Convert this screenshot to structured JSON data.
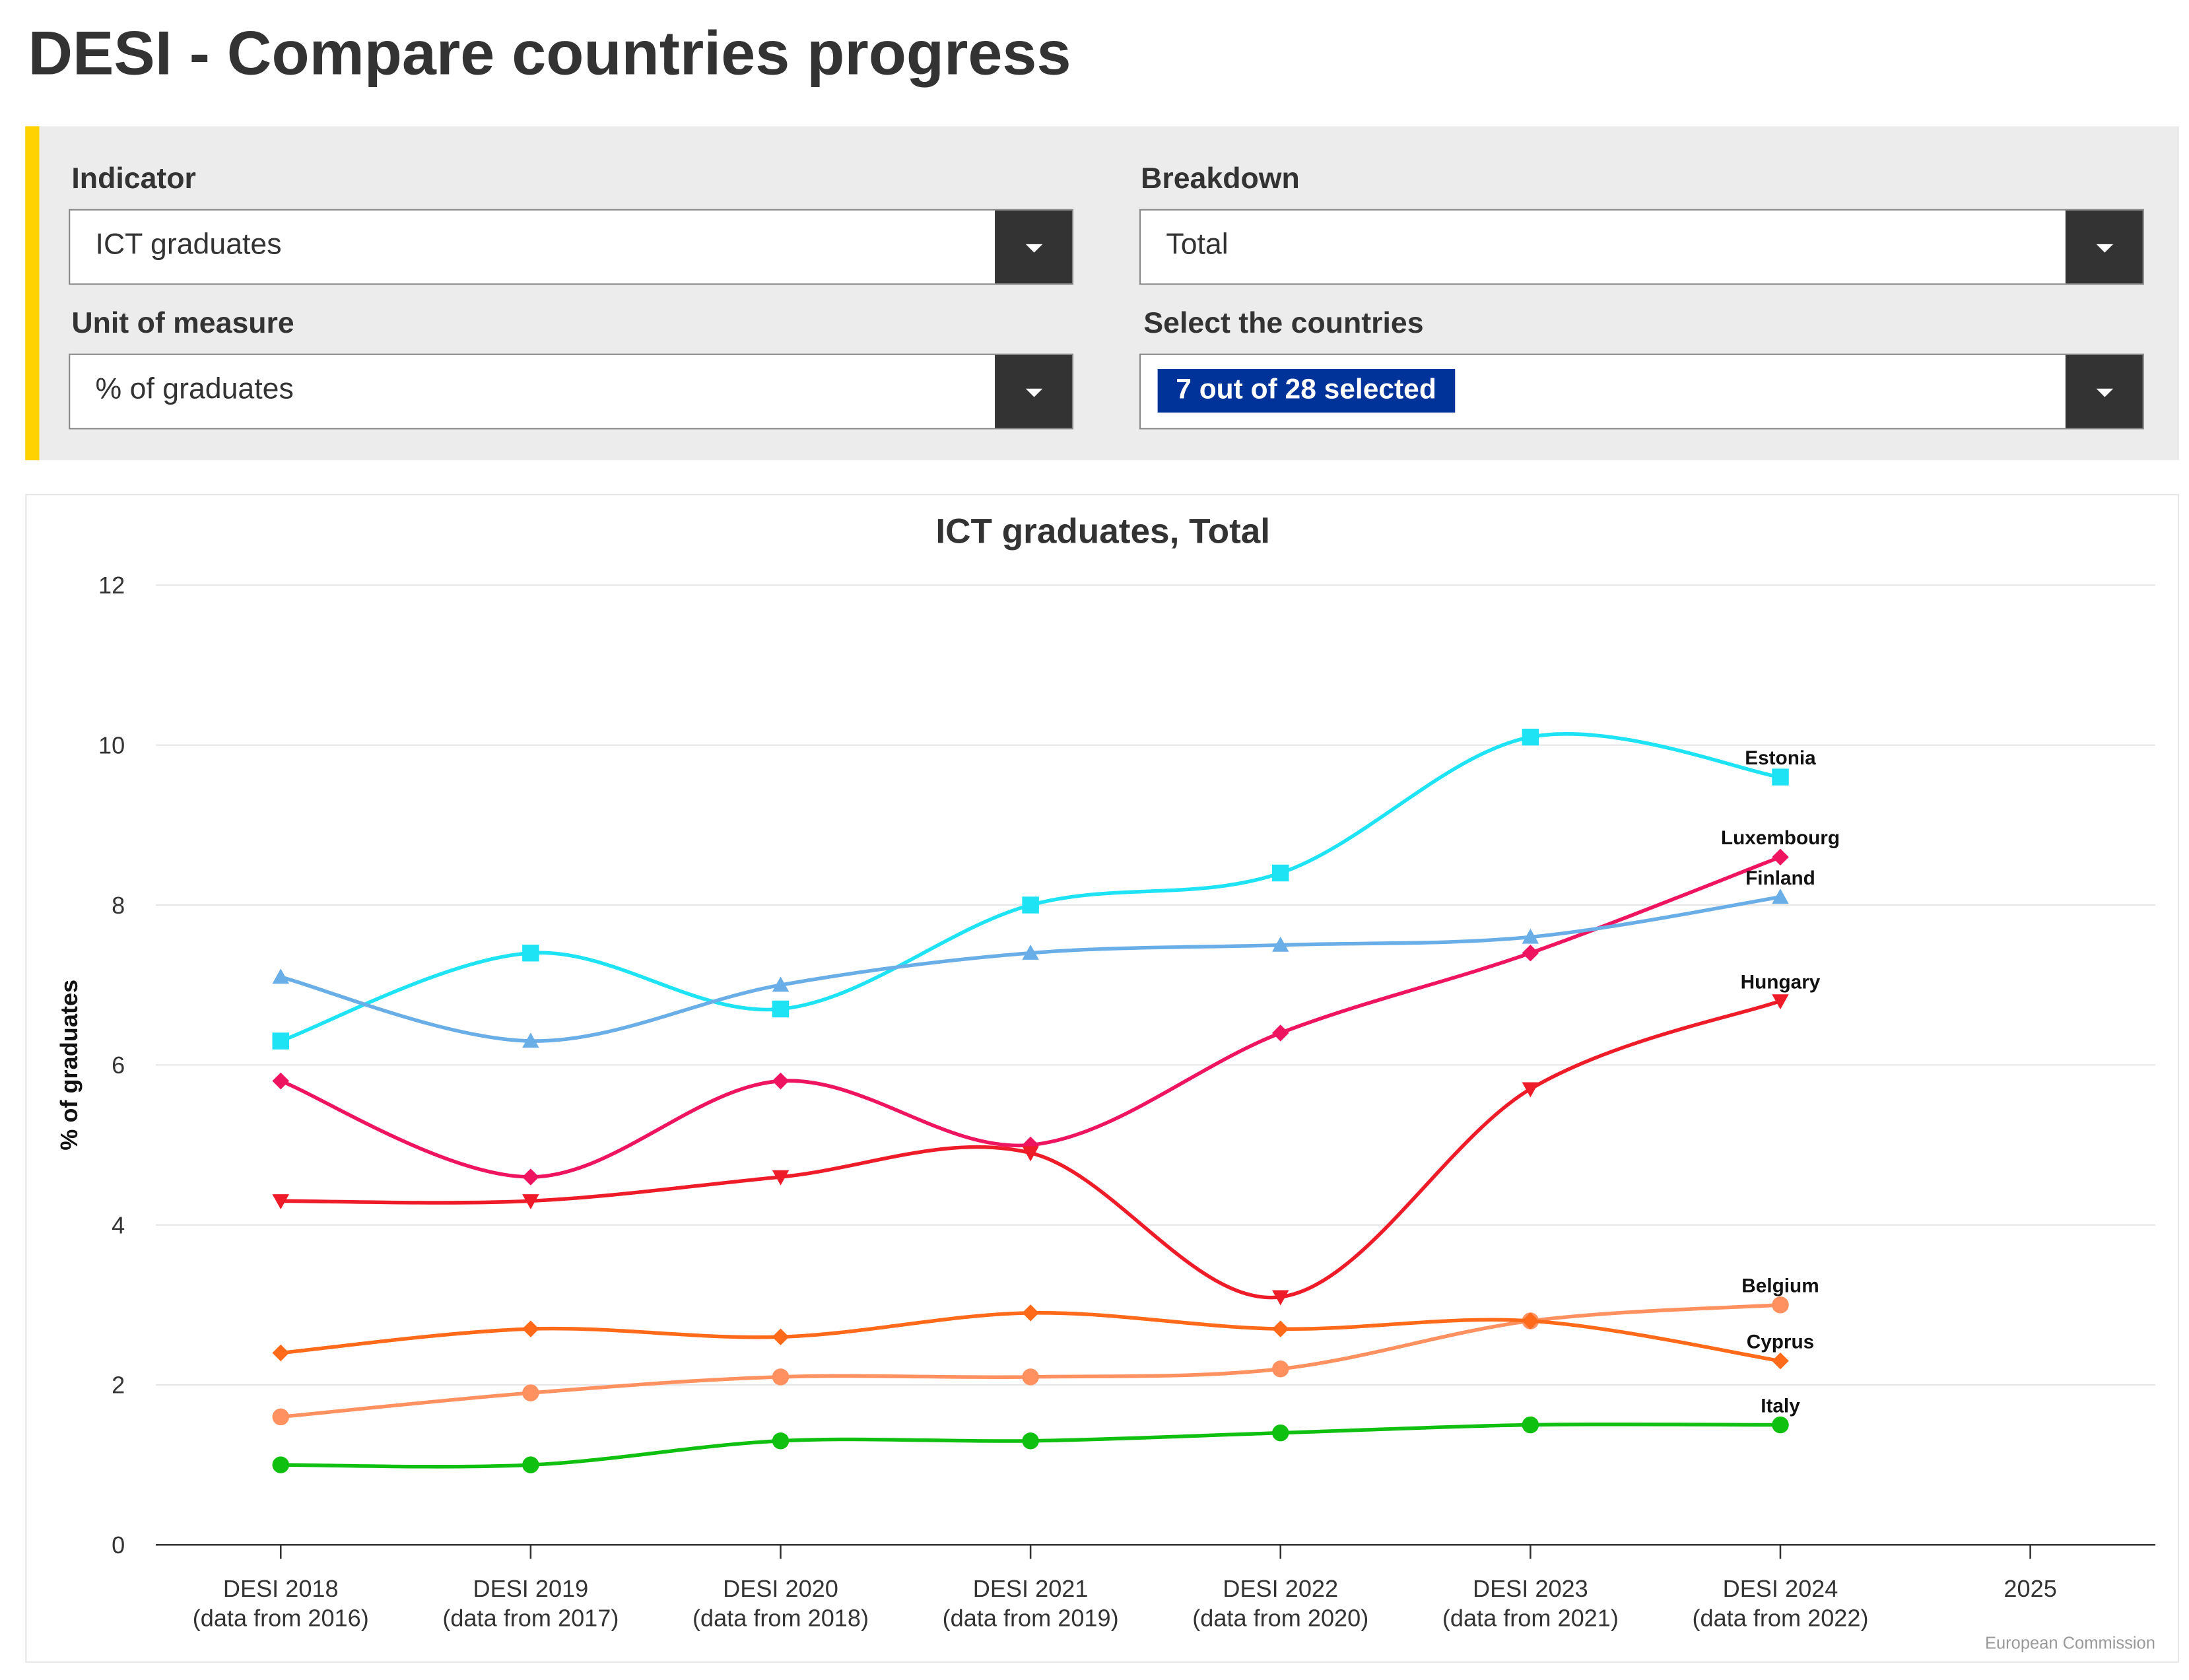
{
  "header": {
    "title": "DESI - Compare countries progress"
  },
  "form": {
    "indicator": {
      "label": "Indicator",
      "value": "ICT graduates"
    },
    "breakdown": {
      "label": "Breakdown",
      "value": "Total"
    },
    "unit": {
      "label": "Unit of measure",
      "value": "% of graduates"
    },
    "countries": {
      "label": "Select the countries",
      "value": "7 out of 28 selected"
    }
  },
  "chart_data": {
    "type": "line",
    "title": "ICT graduates, Total",
    "y_label": "% of graduates",
    "credit": "European Commission",
    "categories": [
      "DESI 2018\n(data from 2016)",
      "DESI 2019\n(data from 2017)",
      "DESI 2020\n(data from 2018)",
      "DESI 2021\n(data from 2019)",
      "DESI 2022\n(data from 2020)",
      "DESI 2023\n(data from 2021)",
      "DESI 2024\n(data from 2022)",
      "2025"
    ],
    "ylim": [
      0,
      12
    ],
    "yticks": [
      0,
      2,
      4,
      6,
      8,
      10,
      12
    ],
    "grid": true,
    "smooth": true,
    "series": [
      {
        "name": "Estonia",
        "color": "#1ee3f5",
        "marker": "square",
        "values": [
          6.3,
          7.4,
          6.7,
          8.0,
          8.4,
          10.1,
          9.6,
          null
        ]
      },
      {
        "name": "Luxembourg",
        "color": "#ee1460",
        "marker": "diamond",
        "values": [
          5.8,
          4.6,
          5.8,
          5.0,
          6.4,
          7.4,
          8.6,
          null
        ]
      },
      {
        "name": "Finland",
        "color": "#6aaee8",
        "marker": "triangle",
        "values": [
          7.1,
          6.3,
          7.0,
          7.4,
          7.5,
          7.6,
          8.1,
          null
        ]
      },
      {
        "name": "Hungary",
        "color": "#ee1c28",
        "marker": "triangle-down",
        "values": [
          4.3,
          4.3,
          4.6,
          4.9,
          3.1,
          5.7,
          6.8,
          null
        ]
      },
      {
        "name": "Belgium",
        "color": "#ff9060",
        "marker": "circle",
        "values": [
          1.6,
          1.9,
          2.1,
          2.1,
          2.2,
          2.8,
          3.0,
          null
        ]
      },
      {
        "name": "Cyprus",
        "color": "#ff6a1a",
        "marker": "diamond",
        "values": [
          2.4,
          2.7,
          2.6,
          2.9,
          2.7,
          2.8,
          2.3,
          null
        ]
      },
      {
        "name": "Italy",
        "color": "#10c010",
        "marker": "circle",
        "values": [
          1.0,
          1.0,
          1.3,
          1.3,
          1.4,
          1.5,
          1.5,
          null
        ]
      }
    ]
  }
}
